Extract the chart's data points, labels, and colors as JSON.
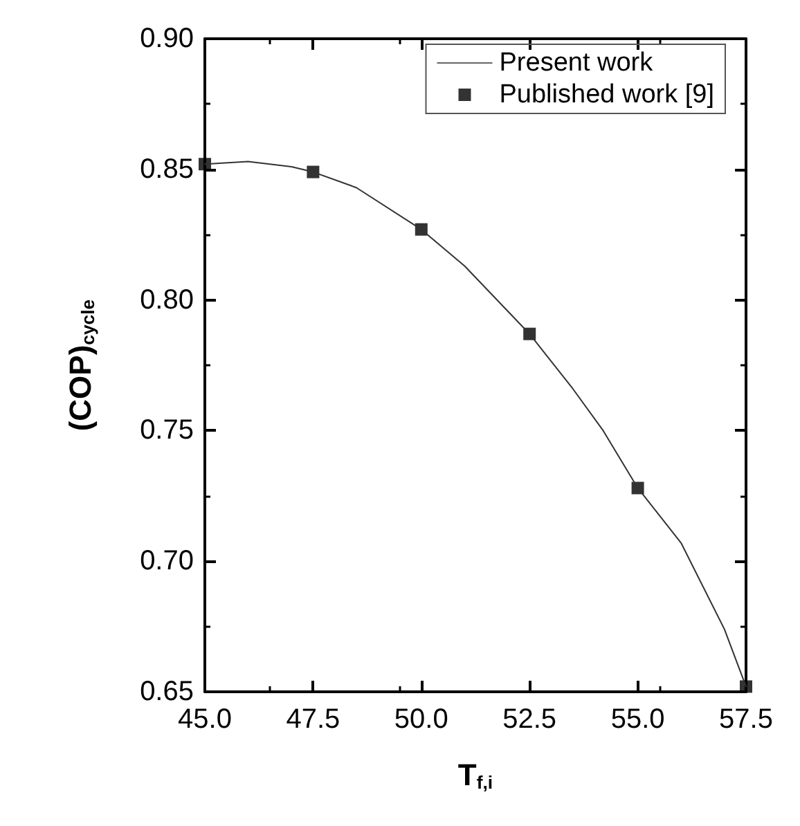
{
  "chart_data": {
    "type": "line",
    "xlabel": "T$_{f,i}$",
    "ylabel": "(COP)$_{cycle}$",
    "xlim": [
      45,
      57.5
    ],
    "xticks": [
      {
        "value": 45,
        "label": "45.0"
      },
      47.5,
      {
        "value": 50,
        "label": "50.0"
      },
      52.5,
      {
        "value": 55,
        "label": "55.0"
      },
      57.5
    ],
    "ylim": [
      0.65,
      0.9
    ],
    "yticks": [
      0.65,
      {
        "value": 0.7,
        "label": "0.70"
      },
      0.75,
      {
        "value": 0.8,
        "label": "0.80"
      },
      0.85,
      {
        "value": 0.9,
        "label": "0.90"
      }
    ],
    "grid": false,
    "legend": "top right",
    "series": [
      {
        "name": "Present work",
        "type": "line",
        "color": "#333333",
        "marker": "none",
        "line_style": "solid",
        "x": [
          45,
          46,
          47,
          47.5,
          48.5,
          50,
          51,
          52.5,
          53.5,
          54.2,
          55,
          56,
          57,
          57.5
        ],
        "values": [
          0.852,
          0.853,
          0.851,
          0.849,
          0.843,
          0.827,
          0.813,
          0.787,
          0.766,
          0.75,
          0.728,
          0.707,
          0.674,
          0.652
        ]
      },
      {
        "name": "Published work [9]",
        "type": "scatter",
        "color": "#000000",
        "marker": "square",
        "x": [
          45,
          47.5,
          50,
          52.5,
          55,
          57.5
        ],
        "values": [
          0.852,
          0.849,
          0.827,
          0.787,
          0.728,
          0.652
        ]
      }
    ]
  }
}
